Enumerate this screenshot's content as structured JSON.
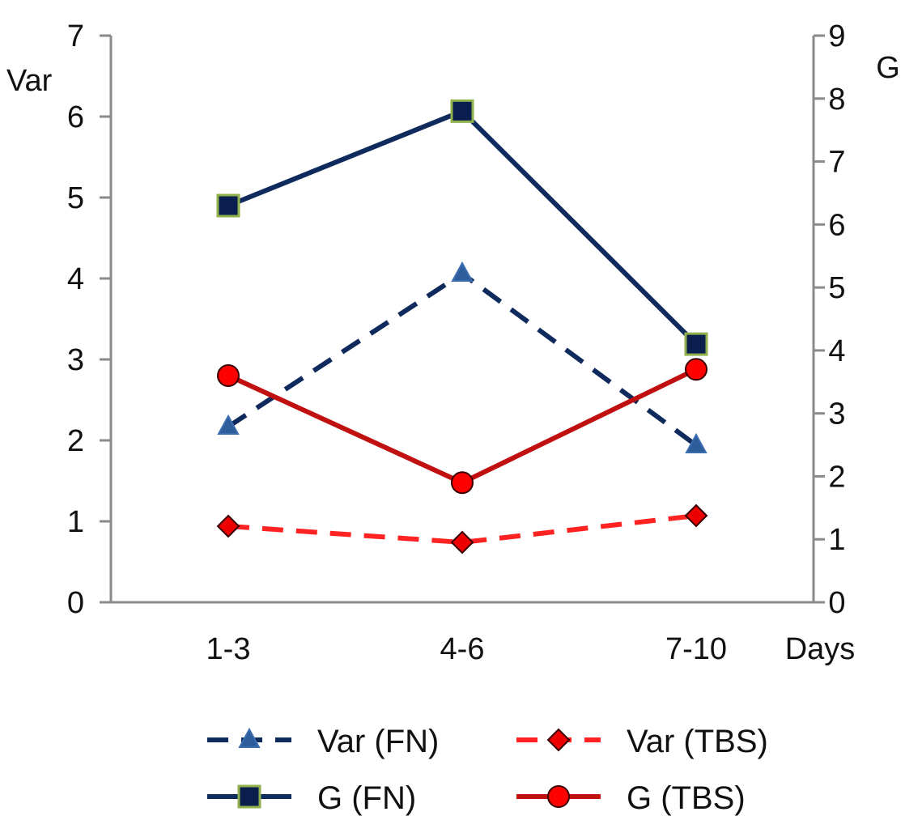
{
  "chart_data": {
    "type": "line",
    "categories": [
      "1-3",
      "4-6",
      "7-10"
    ],
    "xlabel": "Days",
    "left_axis": {
      "label": "Var",
      "range": [
        0,
        7
      ],
      "ticks": [
        "0",
        "1",
        "2",
        "3",
        "4",
        "5",
        "6",
        "7"
      ]
    },
    "right_axis": {
      "label": "G",
      "range": [
        0,
        9
      ],
      "ticks": [
        "0",
        "1",
        "2",
        "3",
        "4",
        "5",
        "6",
        "7",
        "8",
        "9"
      ]
    },
    "grid": false,
    "legend_position": "bottom",
    "series": [
      {
        "name": "Var (FN)",
        "axis": "left",
        "values": [
          2.17,
          4.06,
          1.94
        ],
        "color": "#0f2a5c",
        "marker_color": "#2e5d9c",
        "line": "dashed",
        "marker": "triangle"
      },
      {
        "name": "Var (TBS)",
        "axis": "left",
        "values": [
          0.94,
          0.74,
          1.07
        ],
        "color": "#ff2222",
        "marker_color": "#ee0000",
        "line": "dashed",
        "marker": "diamond"
      },
      {
        "name": "G (FN)",
        "axis": "right",
        "values": [
          6.3,
          7.8,
          4.1
        ],
        "color": "#0f2a5c",
        "marker_color": "#0a1f4f",
        "marker_edge": "#8fb04a",
        "line": "solid",
        "marker": "square"
      },
      {
        "name": "G (TBS)",
        "axis": "right",
        "values": [
          3.6,
          1.9,
          3.7
        ],
        "color": "#c01010",
        "marker_color": "#ff0000",
        "line": "solid",
        "marker": "circle"
      }
    ]
  }
}
